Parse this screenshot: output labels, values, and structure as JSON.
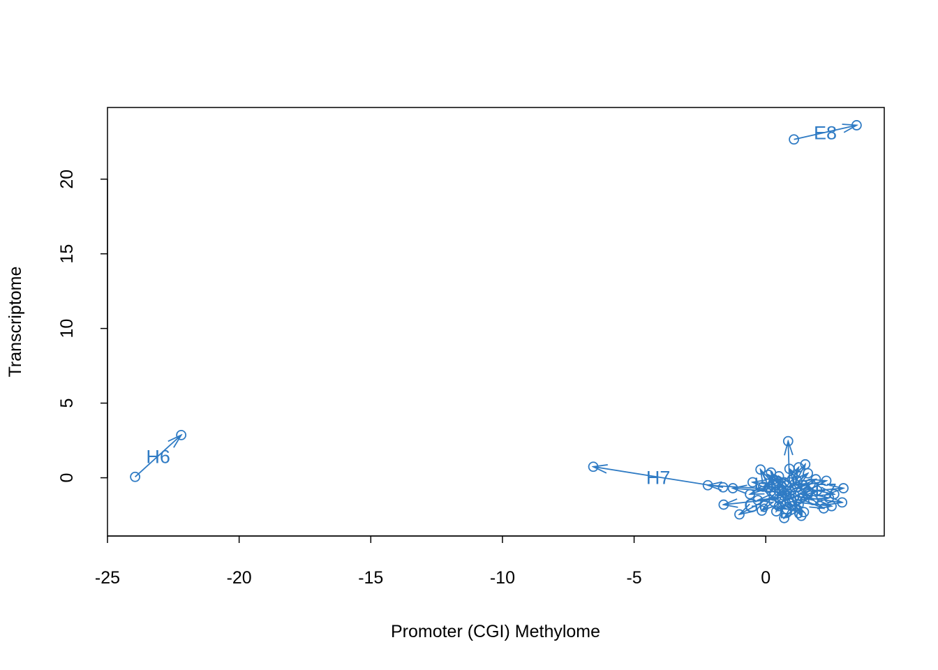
{
  "chart_data": {
    "type": "scatter",
    "title": "",
    "xlabel": "Promoter (CGI) Methylome",
    "ylabel": "Transcriptome",
    "xlim": [
      -25.0,
      4.5
    ],
    "ylim": [
      -3.9,
      24.8
    ],
    "x_ticks": [
      -25,
      -20,
      -15,
      -10,
      -5,
      0
    ],
    "y_ticks": [
      0,
      5,
      10,
      15,
      20
    ],
    "grid": false,
    "legend": "none",
    "color": "#2f7bc4",
    "series": [
      {
        "pairs": [
          {
            "from": [
              1.07,
              22.66
            ],
            "to": [
              3.45,
              23.61
            ],
            "label": "E8"
          },
          {
            "from": [
              -23.95,
              0.06
            ],
            "to": [
              -22.2,
              2.86
            ],
            "label": "H6"
          },
          {
            "from": [
              -1.62,
              -0.64
            ],
            "to": [
              -6.55,
              0.74
            ],
            "label": "H7"
          },
          {
            "from": [
              1.6,
              -0.9
            ],
            "to": [
              2.95,
              -0.7
            ],
            "label": "F7"
          },
          {
            "from": [
              1.25,
              -1.8
            ],
            "to": [
              0.7,
              -2.7
            ],
            "label": "D6"
          },
          {
            "from": [
              0.3,
              -1.2
            ],
            "to": [
              -1.0,
              -2.45
            ],
            "label": "G6"
          },
          {
            "from": [
              0.4,
              -0.5
            ],
            "to": [
              -0.5,
              -0.3
            ],
            "label": "L4"
          },
          {
            "from": [
              0.6,
              -0.8
            ],
            "to": [
              -2.2,
              -0.5
            ],
            "label": ""
          },
          {
            "from": [
              0.5,
              -1.4
            ],
            "to": [
              -1.6,
              -1.8
            ],
            "label": ""
          },
          {
            "from": [
              0.9,
              -0.3
            ],
            "to": [
              0.85,
              2.45
            ],
            "label": ""
          },
          {
            "from": [
              1.2,
              -0.6
            ],
            "to": [
              2.3,
              -0.2
            ],
            "label": ""
          },
          {
            "from": [
              0.7,
              -1.0
            ],
            "to": [
              -1.25,
              -0.7
            ],
            "label": ""
          },
          {
            "from": [
              1.4,
              -1.3
            ],
            "to": [
              2.9,
              -1.65
            ],
            "label": ""
          },
          {
            "from": [
              0.2,
              -0.9
            ],
            "to": [
              -0.2,
              0.55
            ],
            "label": ""
          },
          {
            "from": [
              1.0,
              -1.6
            ],
            "to": [
              2.5,
              -1.9
            ],
            "label": ""
          },
          {
            "from": [
              0.8,
              -1.2
            ],
            "to": [
              0.4,
              -2.25
            ],
            "label": ""
          },
          {
            "from": [
              1.1,
              -0.4
            ],
            "to": [
              1.5,
              0.9
            ],
            "label": ""
          },
          {
            "from": [
              0.6,
              -0.6
            ],
            "to": [
              0.1,
              0.2
            ],
            "label": ""
          },
          {
            "from": [
              1.3,
              -1.0
            ],
            "to": [
              1.8,
              -1.5
            ],
            "label": ""
          },
          {
            "from": [
              0.9,
              -1.1
            ],
            "to": [
              1.35,
              -2.55
            ],
            "label": ""
          },
          {
            "from": [
              1.5,
              -0.7
            ],
            "to": [
              2.6,
              -1.1
            ],
            "label": ""
          },
          {
            "from": [
              0.3,
              -1.6
            ],
            "to": [
              -0.15,
              -2.2
            ],
            "label": ""
          },
          {
            "from": [
              1.2,
              -0.2
            ],
            "to": [
              0.9,
              0.6
            ],
            "label": ""
          },
          {
            "from": [
              0.7,
              -0.3
            ],
            "to": [
              0.3,
              -0.1
            ],
            "label": ""
          },
          {
            "from": [
              1.0,
              -0.8
            ],
            "to": [
              1.7,
              -0.4
            ],
            "label": ""
          },
          {
            "from": [
              0.5,
              -1.9
            ],
            "to": [
              0.8,
              -2.1
            ],
            "label": ""
          },
          {
            "from": [
              1.3,
              -1.4
            ],
            "to": [
              2.2,
              -2.05
            ],
            "label": ""
          },
          {
            "from": [
              0.1,
              -0.7
            ],
            "to": [
              -0.6,
              -1.1
            ],
            "label": ""
          },
          {
            "from": [
              0.8,
              -0.9
            ],
            "to": [
              1.6,
              0.3
            ],
            "label": ""
          },
          {
            "from": [
              1.1,
              -1.2
            ],
            "to": [
              0.6,
              -0.9
            ],
            "label": ""
          },
          {
            "from": [
              0.4,
              -0.2
            ],
            "to": [
              0.2,
              0.35
            ],
            "label": ""
          },
          {
            "from": [
              1.4,
              -0.5
            ],
            "to": [
              1.9,
              -0.1
            ],
            "label": ""
          },
          {
            "from": [
              0.9,
              -1.7
            ],
            "to": [
              1.45,
              -2.3
            ],
            "label": ""
          },
          {
            "from": [
              0.6,
              -1.3
            ],
            "to": [
              -0.3,
              -1.5
            ],
            "label": ""
          },
          {
            "from": [
              1.0,
              -0.1
            ],
            "to": [
              1.25,
              0.7
            ],
            "label": ""
          },
          {
            "from": [
              0.3,
              -0.4
            ],
            "to": [
              -0.1,
              -0.6
            ],
            "label": ""
          },
          {
            "from": [
              1.2,
              -1.5
            ],
            "to": [
              2.4,
              -1.35
            ],
            "label": ""
          },
          {
            "from": [
              0.8,
              -0.5
            ],
            "to": [
              0.5,
              0.1
            ],
            "label": ""
          },
          {
            "from": [
              0.5,
              -0.9
            ],
            "to": [
              1.0,
              -1.9
            ],
            "label": ""
          },
          {
            "from": [
              1.6,
              -1.1
            ],
            "to": [
              1.95,
              -0.85
            ],
            "label": ""
          }
        ]
      }
    ]
  }
}
